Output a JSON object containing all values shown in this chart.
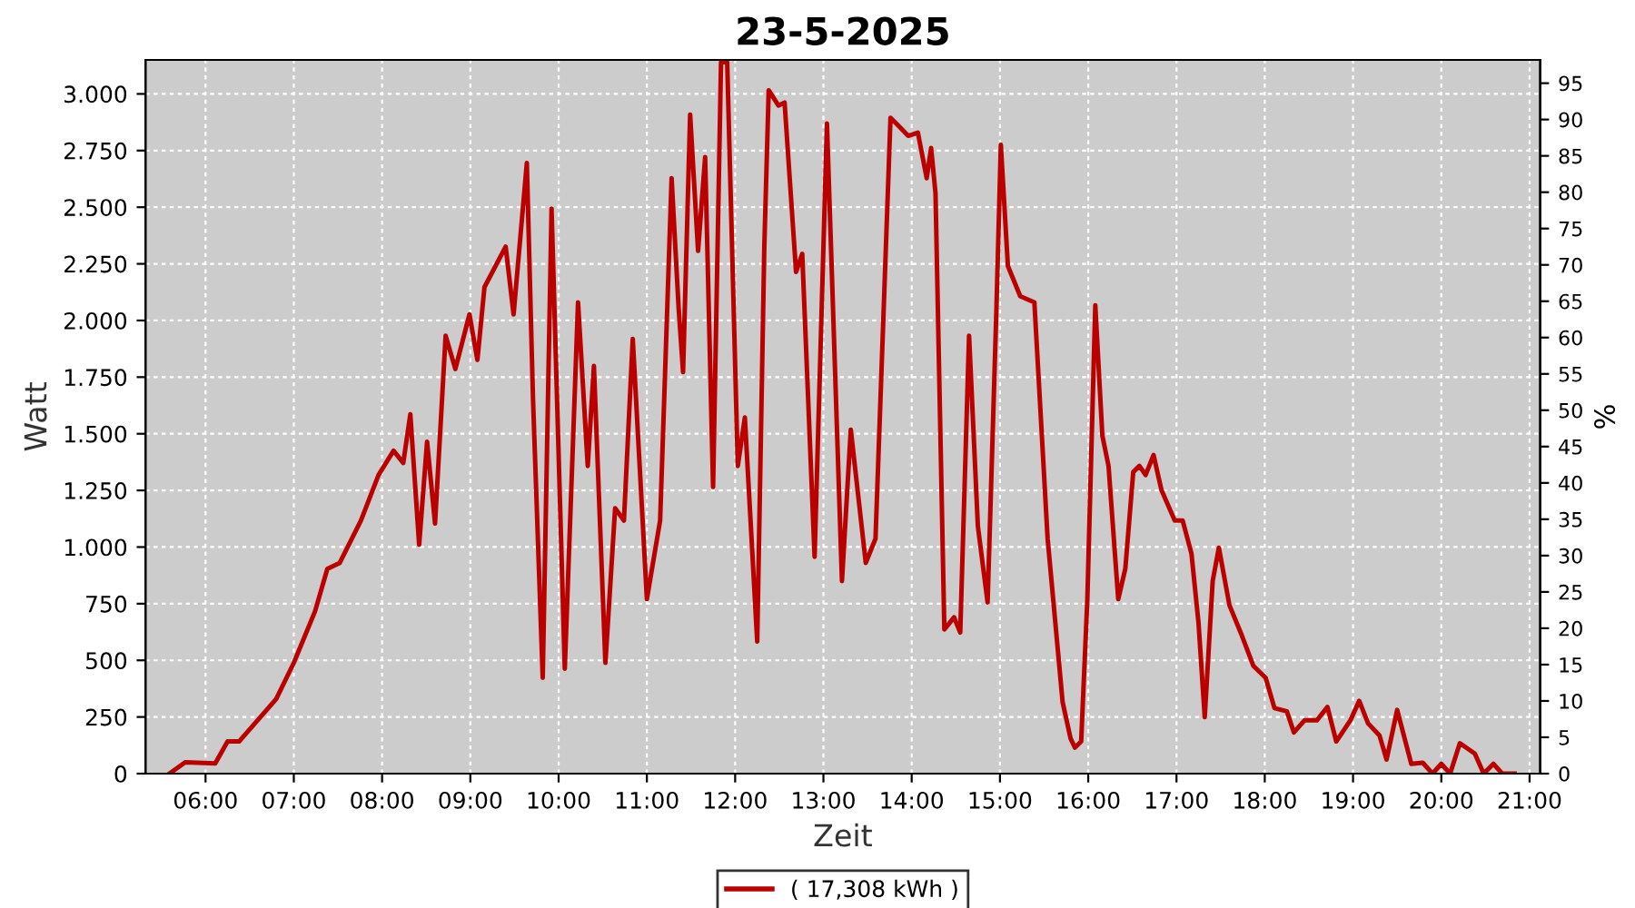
{
  "chart_data": {
    "type": "line",
    "title": "23-5-2025",
    "xlabel": "Zeit",
    "ylabel": "Watt",
    "y2label": "%",
    "xlim": [
      5.32,
      21.12
    ],
    "xticks": [
      {
        "value": 6,
        "label": "06:00"
      },
      {
        "value": 7,
        "label": "07:00"
      },
      {
        "value": 8,
        "label": "08:00"
      },
      {
        "value": 9,
        "label": "09:00"
      },
      {
        "value": 10,
        "label": "10:00"
      },
      {
        "value": 11,
        "label": "11:00"
      },
      {
        "value": 12,
        "label": "12:00"
      },
      {
        "value": 13,
        "label": "13:00"
      },
      {
        "value": 14,
        "label": "14:00"
      },
      {
        "value": 15,
        "label": "15:00"
      },
      {
        "value": 16,
        "label": "16:00"
      },
      {
        "value": 17,
        "label": "17:00"
      },
      {
        "value": 18,
        "label": "18:00"
      },
      {
        "value": 19,
        "label": "19:00"
      },
      {
        "value": 20,
        "label": "20:00"
      },
      {
        "value": 21,
        "label": "21:00"
      }
    ],
    "ylim": [
      0,
      3150
    ],
    "yticks": [
      0,
      250,
      500,
      750,
      {
        "value": 1000,
        "label": "1.000"
      },
      {
        "value": 1250,
        "label": "1.250"
      },
      {
        "value": 1500,
        "label": "1.500"
      },
      {
        "value": 1750,
        "label": "1.750"
      },
      {
        "value": 2000,
        "label": "2.000"
      },
      {
        "value": 2250,
        "label": "2.250"
      },
      {
        "value": 2500,
        "label": "2.500"
      },
      {
        "value": 2750,
        "label": "2.750"
      },
      {
        "value": 3000,
        "label": "3.000"
      }
    ],
    "y2lim": [
      0,
      98.2
    ],
    "y2ticks": [
      0,
      5,
      10,
      15,
      20,
      25,
      30,
      35,
      40,
      45,
      50,
      55,
      60,
      65,
      70,
      75,
      80,
      85,
      90,
      95
    ],
    "grid": true,
    "legend": "bottom",
    "marker": "none",
    "line_style": "solid",
    "series": [
      {
        "name": "( 17,308 kWh )",
        "color": "#bb0000",
        "x": [
          5.59,
          5.77,
          6.11,
          6.25,
          6.38,
          6.8,
          7.0,
          7.24,
          7.38,
          7.52,
          7.76,
          7.96,
          8.13,
          8.24,
          8.32,
          8.42,
          8.51,
          8.6,
          8.72,
          8.83,
          8.99,
          9.08,
          9.16,
          9.4,
          9.49,
          9.64,
          9.71,
          9.82,
          9.92,
          10.07,
          10.22,
          10.33,
          10.4,
          10.53,
          10.64,
          10.74,
          10.84,
          11.0,
          11.15,
          11.28,
          11.36,
          11.41,
          11.49,
          11.58,
          11.66,
          11.75,
          11.84,
          11.91,
          12.03,
          12.11,
          12.25,
          12.33,
          12.38,
          12.49,
          12.56,
          12.69,
          12.76,
          12.9,
          13.04,
          13.21,
          13.31,
          13.48,
          13.59,
          13.76,
          13.86,
          13.96,
          14.07,
          14.17,
          14.22,
          14.27,
          14.37,
          14.48,
          14.55,
          14.65,
          14.75,
          14.86,
          14.96,
          15.01,
          15.09,
          15.23,
          15.39,
          15.54,
          15.71,
          15.8,
          15.85,
          15.92,
          15.99,
          16.08,
          16.16,
          16.23,
          16.34,
          16.42,
          16.51,
          16.58,
          16.65,
          16.74,
          16.83,
          16.98,
          17.07,
          17.17,
          17.25,
          17.32,
          17.41,
          17.48,
          17.6,
          17.74,
          17.87,
          18.01,
          18.11,
          18.25,
          18.33,
          18.45,
          18.59,
          18.71,
          18.81,
          18.97,
          19.07,
          19.17,
          19.3,
          19.38,
          19.5,
          19.66,
          19.79,
          19.9,
          20.0,
          20.1,
          20.21,
          20.38,
          20.48,
          20.59,
          20.69,
          20.83
        ],
        "values": [
          0,
          50,
          45,
          142,
          142,
          329,
          489,
          716,
          904,
          930,
          1117,
          1318,
          1425,
          1371,
          1586,
          1011,
          1465,
          1104,
          1933,
          1786,
          2027,
          1826,
          2147,
          2326,
          2027,
          2695,
          1652,
          423,
          2494,
          463,
          2080,
          1358,
          1799,
          489,
          1171,
          1117,
          1919,
          770,
          1117,
          2628,
          2053,
          1772,
          2909,
          2307,
          2721,
          1265,
          3140,
          3140,
          1358,
          1572,
          583,
          2320,
          3016,
          2949,
          2962,
          2214,
          2294,
          957,
          2869,
          850,
          1518,
          930,
          1037,
          2895,
          2855,
          2815,
          2829,
          2628,
          2761,
          2561,
          636,
          690,
          623,
          1933,
          1091,
          756,
          2053,
          2775,
          2240,
          2107,
          2080,
          1037,
          315,
          155,
          115,
          142,
          770,
          2067,
          1492,
          1358,
          770,
          904,
          1331,
          1358,
          1318,
          1406,
          1251,
          1117,
          1117,
          970,
          663,
          249,
          850,
          997,
          743,
          610,
          476,
          423,
          289,
          275,
          182,
          235,
          235,
          294,
          142,
          235,
          321,
          222,
          168,
          62,
          281,
          43,
          48,
          0,
          43,
          0,
          134,
          88,
          0,
          43,
          0,
          0
        ]
      }
    ]
  }
}
